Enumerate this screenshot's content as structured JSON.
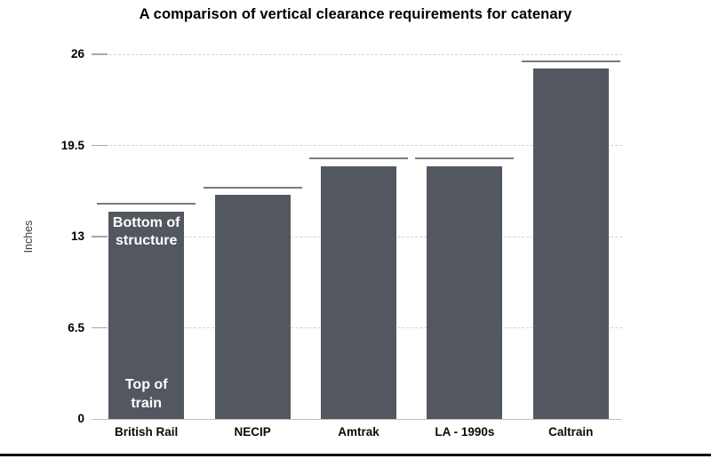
{
  "colors": {
    "bar": "#53575f",
    "cap_line": "#7a7b7e",
    "gridline": "#d3d3d3",
    "tick": "#a8a8a8",
    "axis_line": "#bfbfbf",
    "annotation_text": "#ffffff",
    "bottom_border": "#0f0f0f",
    "title_text": "#000000"
  },
  "chart_data": {
    "type": "bar",
    "title": "A comparison of vertical clearance requirements for catenary",
    "xlabel": "",
    "ylabel": "Inches",
    "categories": [
      "British Rail",
      "NECIP",
      "Amtrak",
      "LA - 1990s",
      "Caltrain"
    ],
    "values": [
      14.8,
      16.0,
      18.0,
      18.0,
      25.0
    ],
    "cap_line_values": [
      15.3,
      16.4,
      18.5,
      18.5,
      25.4
    ],
    "yticks": [
      0,
      6.5,
      13,
      19.5,
      26
    ],
    "ylim": [
      0,
      26
    ],
    "grid": "horizontal-dashed",
    "legend": "none",
    "annotations": [
      {
        "text": "Bottom of structure",
        "bar": "British Rail",
        "position": "top-inside"
      },
      {
        "text": "Top of train",
        "bar": "British Rail",
        "position": "bottom-inside"
      }
    ]
  }
}
